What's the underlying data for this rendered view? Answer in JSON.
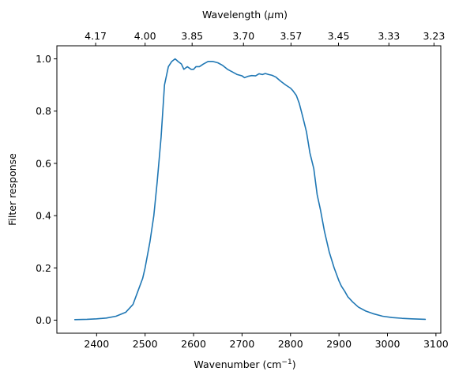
{
  "chart_data": {
    "type": "line",
    "title": "",
    "xlabel": "Wavenumber (cm",
    "xlabel_sup": "−1",
    "xlabel_close": ")",
    "ylabel": "Filter response",
    "top_xlabel": "Wavelength (",
    "top_xlabel_mu": "μ",
    "top_xlabel_close": "m)",
    "xlim": [
      2318,
      3110
    ],
    "ylim": [
      -0.05,
      1.05
    ],
    "grid": false,
    "x_ticks": [
      {
        "value": 2400,
        "label": "2400"
      },
      {
        "value": 2500,
        "label": "2500"
      },
      {
        "value": 2600,
        "label": "2600"
      },
      {
        "value": 2700,
        "label": "2700"
      },
      {
        "value": 2800,
        "label": "2800"
      },
      {
        "value": 2900,
        "label": "2900"
      },
      {
        "value": 3000,
        "label": "3000"
      },
      {
        "value": 3100,
        "label": "3100"
      }
    ],
    "y_ticks": [
      {
        "value": 0.0,
        "label": "0.0"
      },
      {
        "value": 0.2,
        "label": "0.2"
      },
      {
        "value": 0.4,
        "label": "0.4"
      },
      {
        "value": 0.6,
        "label": "0.6"
      },
      {
        "value": 0.8,
        "label": "0.8"
      },
      {
        "value": 1.0,
        "label": "1.0"
      }
    ],
    "top_ticks": [
      {
        "value": 2398,
        "label": "4.17"
      },
      {
        "value": 2500,
        "label": "4.00"
      },
      {
        "value": 2597,
        "label": "3.85"
      },
      {
        "value": 2703,
        "label": "3.70"
      },
      {
        "value": 2801,
        "label": "3.57"
      },
      {
        "value": 2899,
        "label": "3.45"
      },
      {
        "value": 3003,
        "label": "3.33"
      },
      {
        "value": 3096,
        "label": "3.23"
      }
    ],
    "series": [
      {
        "color": "#1f77b4",
        "x": [
          2355,
          2380,
          2400,
          2420,
          2440,
          2460,
          2475,
          2485,
          2495,
          2500,
          2510,
          2518,
          2525,
          2533,
          2540,
          2548,
          2555,
          2562,
          2568,
          2575,
          2580,
          2587,
          2595,
          2600,
          2605,
          2612,
          2620,
          2630,
          2640,
          2650,
          2660,
          2670,
          2680,
          2690,
          2700,
          2705,
          2712,
          2720,
          2728,
          2735,
          2742,
          2748,
          2755,
          2762,
          2770,
          2780,
          2790,
          2800,
          2805,
          2812,
          2818,
          2825,
          2833,
          2840,
          2848,
          2855,
          2862,
          2870,
          2880,
          2890,
          2900,
          2905,
          2912,
          2918,
          2928,
          2940,
          2955,
          2970,
          2990,
          3010,
          3030,
          3050,
          3078
        ],
        "y": [
          0.002,
          0.003,
          0.005,
          0.008,
          0.015,
          0.03,
          0.06,
          0.11,
          0.16,
          0.2,
          0.3,
          0.4,
          0.53,
          0.7,
          0.9,
          0.97,
          0.99,
          1.0,
          0.99,
          0.98,
          0.96,
          0.97,
          0.96,
          0.96,
          0.97,
          0.97,
          0.98,
          0.99,
          0.99,
          0.985,
          0.975,
          0.96,
          0.95,
          0.94,
          0.935,
          0.928,
          0.933,
          0.936,
          0.935,
          0.943,
          0.94,
          0.944,
          0.94,
          0.937,
          0.93,
          0.914,
          0.9,
          0.888,
          0.878,
          0.86,
          0.83,
          0.78,
          0.72,
          0.64,
          0.58,
          0.48,
          0.42,
          0.34,
          0.26,
          0.2,
          0.15,
          0.13,
          0.11,
          0.09,
          0.07,
          0.05,
          0.035,
          0.025,
          0.015,
          0.01,
          0.007,
          0.005,
          0.003
        ]
      }
    ]
  }
}
